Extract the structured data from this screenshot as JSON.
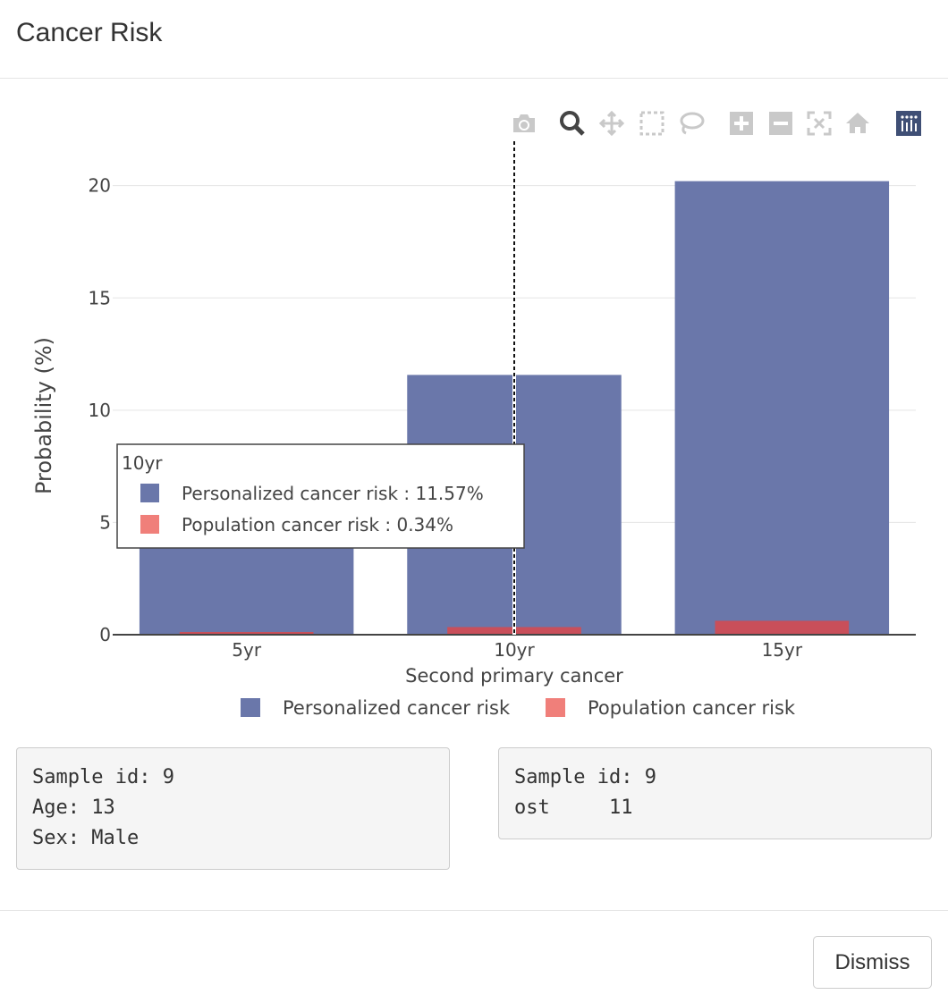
{
  "header": {
    "title": "Cancer Risk"
  },
  "modebar": {
    "buttons": [
      "camera-icon",
      "zoom-icon",
      "pan-icon",
      "box-select-icon",
      "lasso-icon",
      "zoom-in-icon",
      "zoom-out-icon",
      "autoscale-icon",
      "reset-axes-icon",
      "plotly-logo-icon"
    ]
  },
  "chart_data": {
    "type": "bar",
    "barmode": "overlay",
    "categories": [
      "5yr",
      "10yr",
      "15yr"
    ],
    "series": [
      {
        "name": "Personalized cancer risk",
        "values": [
          3.9,
          11.57,
          20.2
        ],
        "color": "#6a77aa"
      },
      {
        "name": "Population cancer risk",
        "values": [
          0.12,
          0.34,
          0.62
        ],
        "color": "#c94f5a"
      }
    ],
    "legend_colors": [
      "#6a77aa",
      "#f07f7a"
    ],
    "xlabel": "Second primary cancer",
    "ylabel": "Probability (%)",
    "ylim": [
      0,
      21.5
    ],
    "yticks": [
      0,
      5,
      10,
      15,
      20
    ],
    "legend_position": "bottom-center",
    "hover": {
      "category": "10yr",
      "lines": [
        "Personalized cancer risk : 11.57%",
        "Population cancer risk : 0.34%"
      ]
    }
  },
  "info_left": {
    "sample_id": "Sample id: 9",
    "age": "Age: 13",
    "sex": "Sex: Male"
  },
  "info_right": {
    "sample_id": "Sample id: 9",
    "ost": "ost     11"
  },
  "footer": {
    "dismiss_label": "Dismiss"
  }
}
